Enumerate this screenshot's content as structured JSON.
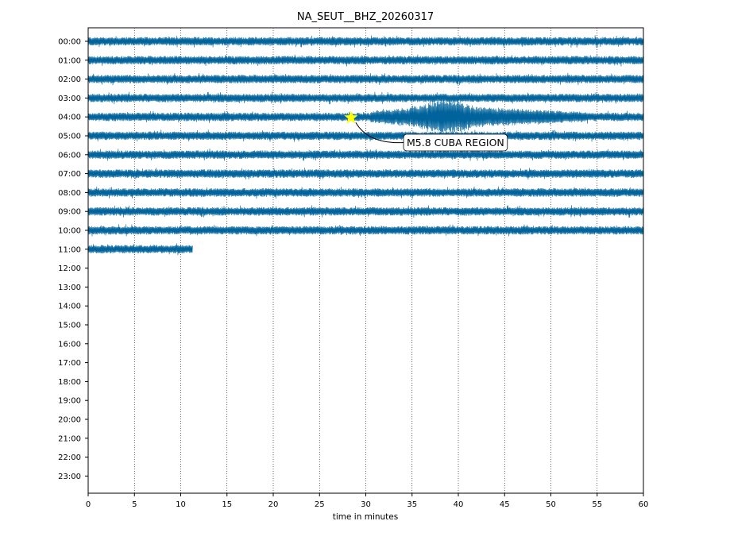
{
  "chart_data": {
    "type": "line",
    "title": "NA_SEUT__BHZ_20260317",
    "xlabel": "time in minutes",
    "ylabel": "",
    "xlim": [
      0,
      60
    ],
    "x_ticks": [
      0,
      5,
      10,
      15,
      20,
      25,
      30,
      35,
      40,
      45,
      50,
      55,
      60
    ],
    "rows": [
      "00:00",
      "01:00",
      "02:00",
      "03:00",
      "04:00",
      "05:00",
      "06:00",
      "07:00",
      "08:00",
      "09:00",
      "10:00",
      "11:00",
      "12:00",
      "13:00",
      "14:00",
      "15:00",
      "16:00",
      "17:00",
      "18:00",
      "19:00",
      "20:00",
      "21:00",
      "22:00",
      "23:00"
    ],
    "trace_color": "#00639b",
    "vertical_grid": true,
    "grid_style": "dotted",
    "traces": [
      {
        "row": "00:00",
        "start_min": 0,
        "end_min": 60
      },
      {
        "row": "01:00",
        "start_min": 0,
        "end_min": 60
      },
      {
        "row": "02:00",
        "start_min": 0,
        "end_min": 60
      },
      {
        "row": "03:00",
        "start_min": 0,
        "end_min": 60
      },
      {
        "row": "04:00",
        "start_min": 0,
        "end_min": 60
      },
      {
        "row": "05:00",
        "start_min": 0,
        "end_min": 60
      },
      {
        "row": "06:00",
        "start_min": 0,
        "end_min": 60
      },
      {
        "row": "07:00",
        "start_min": 0,
        "end_min": 60
      },
      {
        "row": "08:00",
        "start_min": 0,
        "end_min": 60
      },
      {
        "row": "09:00",
        "start_min": 0,
        "end_min": 60
      },
      {
        "row": "10:00",
        "start_min": 0,
        "end_min": 60
      },
      {
        "row": "11:00",
        "start_min": 0,
        "end_min": 11.3
      }
    ],
    "event": {
      "label": "M5.8 CUBA REGION",
      "row": "04:00",
      "origin_min": 28.4,
      "marker": "star",
      "marker_color": "#ffff00",
      "wave_window_min": [
        30.5,
        54
      ]
    }
  }
}
